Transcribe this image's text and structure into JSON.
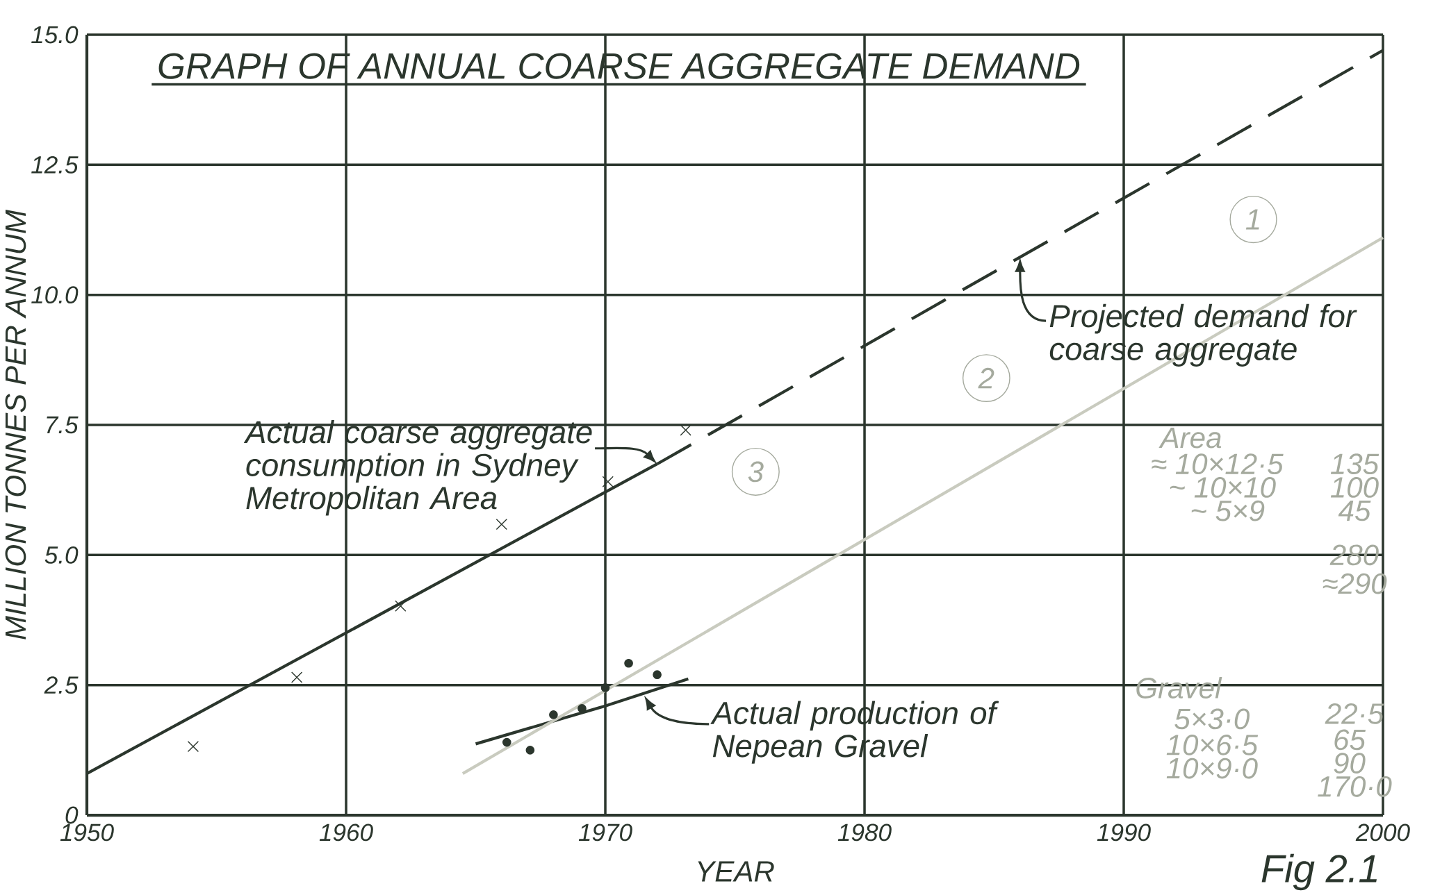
{
  "chart_data": {
    "type": "scatter",
    "title": "GRAPH OF ANNUAL COARSE AGGREGATE DEMAND",
    "xlabel": "YEAR",
    "ylabel": "MILLION TONNES PER ANNUM",
    "xlim": [
      1950,
      2000
    ],
    "ylim": [
      0,
      15
    ],
    "xticks": [
      1950,
      1960,
      1970,
      1980,
      1990,
      2000
    ],
    "yticks": [
      0,
      2.5,
      {
        "value": 5,
        "label": "5.0"
      },
      7.5,
      {
        "value": 10,
        "label": "10.0"
      },
      12.5,
      {
        "value": 15,
        "label": "15.0"
      }
    ],
    "grid": true,
    "series": [
      {
        "marker": "cross",
        "color": "#2b362d",
        "x": [
          1954.1,
          1958.1,
          1962.1,
          1966.0,
          1970.1,
          1973.1
        ],
        "values": [
          1.32,
          2.65,
          4.02,
          5.59,
          6.41,
          7.4
        ]
      },
      {
        "type": "line",
        "line_style": "solid",
        "color": "#2b362d",
        "x": [
          1950,
          1972
        ],
        "values": [
          0.8,
          6.75
        ]
      },
      {
        "type": "line",
        "line_style": "dashed",
        "color": "#2b362d",
        "x": [
          1972,
          2000
        ],
        "values": [
          6.75,
          14.7
        ]
      },
      {
        "marker": "circle",
        "color": "#2b362d",
        "x": [
          1966.2,
          1967.1,
          1968.0,
          1969.1,
          1970.0,
          1970.9,
          1972.0
        ],
        "values": [
          1.4,
          1.25,
          1.93,
          2.05,
          2.45,
          2.92,
          2.7
        ]
      },
      {
        "type": "line",
        "line_style": "solid",
        "color": "#2b362d",
        "x": [
          1965.0,
          1970.0,
          1973.2
        ],
        "values": [
          1.37,
          2.1,
          2.62
        ]
      },
      {
        "type": "line",
        "line_style": "solid",
        "color": "#c9cbbf",
        "x": [
          1964.5,
          2000
        ],
        "values": [
          0.8,
          11.1
        ]
      }
    ],
    "annotations": [
      {
        "text": "Actual coarse aggregate consumption in Sydney Metropolitan Area",
        "x": 1972,
        "y": 6.75
      },
      {
        "text": "Projected demand for coarse aggregate",
        "x": 1986,
        "y": 10.72
      },
      {
        "text": "Actual production of Nepean Gravel",
        "x": 1971.5,
        "y": 2.3
      },
      "Fig 2.1",
      "Area",
      "≈ 10×12·5",
      "~ 10×10",
      "~ 5×9",
      "135",
      "100",
      "45",
      "280",
      "≈290",
      "Gravel",
      "5×3·0",
      "10×6·5",
      "10×9·0",
      "22·5",
      "65",
      "90",
      "170·0",
      "1",
      "2",
      "3"
    ]
  }
}
